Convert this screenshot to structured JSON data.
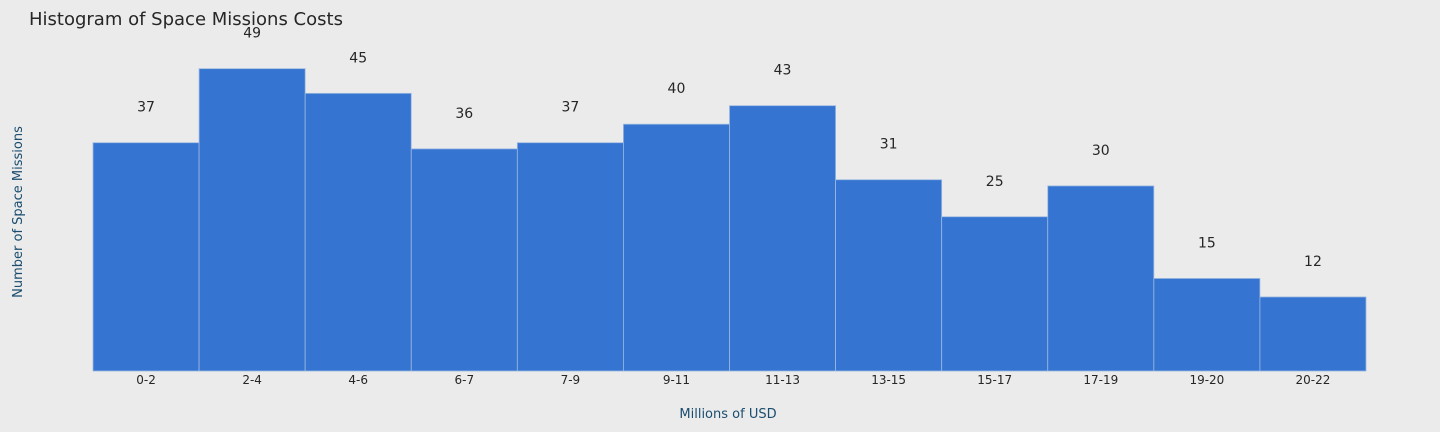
{
  "chart_data": {
    "type": "bar",
    "title": "Histogram of Space Missions Costs",
    "xlabel": "Millions of USD",
    "ylabel": "Number of Space Missions",
    "categories": [
      "0-2",
      "2-4",
      "4-6",
      "6-7",
      "7-9",
      "9-11",
      "11-13",
      "13-15",
      "15-17",
      "17-19",
      "19-20",
      "20-22"
    ],
    "values": [
      37,
      49,
      45,
      36,
      37,
      40,
      43,
      31,
      25,
      30,
      15,
      12
    ],
    "ylim": [
      0,
      55
    ],
    "grid": false,
    "colors": {
      "bar": "#3575d1",
      "bar_edge": "#9db9e0",
      "axis_label": "#1a4d6f",
      "background": "#ebebeb"
    }
  }
}
